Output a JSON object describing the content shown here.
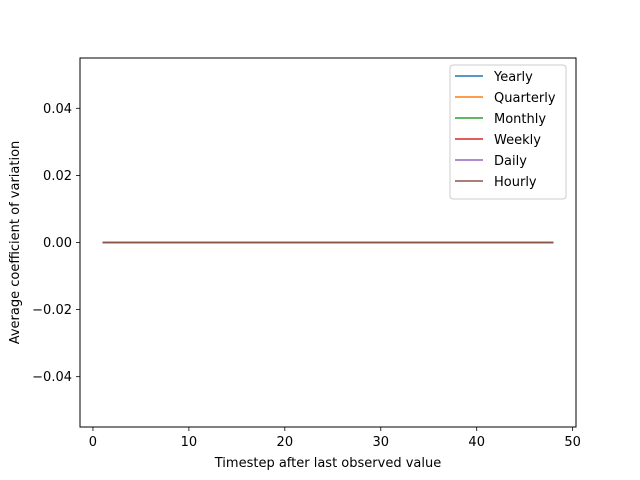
{
  "chart_data": {
    "type": "line",
    "title": "",
    "xlabel": "Timestep after last observed value",
    "ylabel": "Average coefficient of variation",
    "xlim": [
      -1.35,
      50.35
    ],
    "ylim": [
      -0.055,
      0.055
    ],
    "x_ticks": [
      0,
      10,
      20,
      30,
      40,
      50
    ],
    "x_tick_labels": [
      "0",
      "10",
      "20",
      "30",
      "40",
      "50"
    ],
    "y_ticks": [
      -0.04,
      -0.02,
      0.0,
      0.02,
      0.04
    ],
    "y_tick_labels": [
      "−0.04",
      "−0.02",
      "0.00",
      "0.02",
      "0.04"
    ],
    "grid": false,
    "legend_position": "top-right",
    "x": [
      1,
      48
    ],
    "series": [
      {
        "name": "Yearly",
        "color": "#1f77b4",
        "values": [
          0,
          0
        ]
      },
      {
        "name": "Quarterly",
        "color": "#ff7f0e",
        "values": [
          0,
          0
        ]
      },
      {
        "name": "Monthly",
        "color": "#2ca02c",
        "values": [
          0,
          0
        ]
      },
      {
        "name": "Weekly",
        "color": "#d62728",
        "values": [
          0,
          0
        ]
      },
      {
        "name": "Daily",
        "color": "#9467bd",
        "values": [
          0,
          0
        ]
      },
      {
        "name": "Hourly",
        "color": "#8c564b",
        "values": [
          0,
          0
        ]
      }
    ]
  }
}
